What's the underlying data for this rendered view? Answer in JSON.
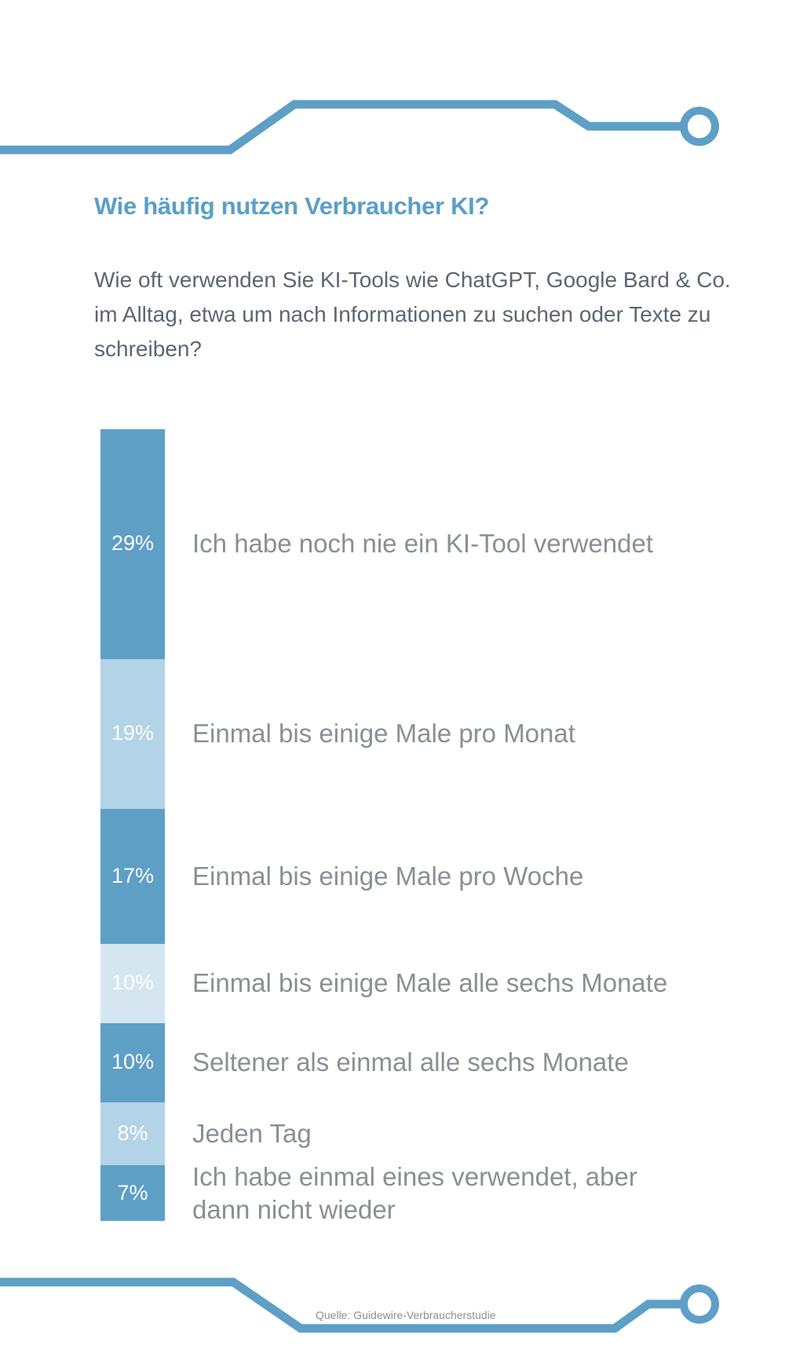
{
  "colors": {
    "accent": "#5a9fc6",
    "dark": "#5e9fc5",
    "light": "#b3d3e6",
    "lightest": "#d5e6f0"
  },
  "title": "Wie häufig nutzen Verbraucher KI?",
  "question": "Wie oft verwenden Sie KI-Tools wie ChatGPT, Google Bard & Co. im Alltag, etwa um nach Informationen zu suchen oder Texte zu schreiben?",
  "source": "Quelle: Guidewire-Verbraucherstudie",
  "chart_data": {
    "type": "bar",
    "orientation": "stacked-vertical",
    "title": "Wie häufig nutzen Verbraucher KI?",
    "categories": [
      "Ich habe noch nie ein KI-Tool verwendet",
      "Einmal bis einige Male pro Monat",
      "Einmal bis einige Male pro Woche",
      "Einmal bis einige Male alle sechs Monate",
      "Seltener als einmal alle sechs Monate",
      "Jeden Tag",
      "Ich habe einmal eines verwendet, aber dann nicht wieder"
    ],
    "values": [
      29,
      19,
      17,
      10,
      10,
      8,
      7
    ],
    "value_labels": [
      "29%",
      "19%",
      "17%",
      "10%",
      "10%",
      "8%",
      "7%"
    ],
    "shades": [
      "dark",
      "light",
      "dark",
      "lightest",
      "dark",
      "light",
      "dark"
    ],
    "unit": "%"
  }
}
